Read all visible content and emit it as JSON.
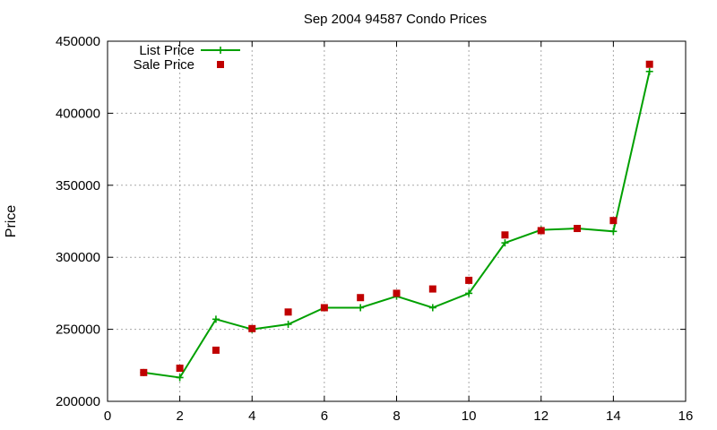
{
  "chart_data": {
    "type": "line",
    "title": "Sep 2004 94587 Condo Prices",
    "xlabel": "",
    "ylabel": "Price",
    "xlim": [
      0,
      16
    ],
    "ylim": [
      200000,
      450000
    ],
    "xticks": [
      0,
      2,
      4,
      6,
      8,
      10,
      12,
      14,
      16
    ],
    "yticks": [
      200000,
      250000,
      300000,
      350000,
      400000,
      450000
    ],
    "grid": true,
    "legend_position": "top-left",
    "series": [
      {
        "name": "List Price",
        "style": "line-with-plus-markers",
        "color": "#00a000",
        "x": [
          1,
          2,
          3,
          4,
          5,
          6,
          7,
          8,
          9,
          10,
          11,
          12,
          13,
          14,
          15
        ],
        "y": [
          220000,
          216500,
          257000,
          250000,
          253500,
          265000,
          265000,
          273000,
          265000,
          275000,
          310000,
          319000,
          320000,
          318000,
          429000
        ]
      },
      {
        "name": "Sale Price",
        "style": "square-markers",
        "color": "#c00000",
        "x": [
          1,
          2,
          3,
          4,
          5,
          6,
          7,
          8,
          9,
          10,
          11,
          12,
          13,
          14,
          15
        ],
        "y": [
          220000,
          223000,
          235500,
          250500,
          262000,
          265000,
          272000,
          275000,
          278000,
          284000,
          315500,
          318500,
          320000,
          325500,
          434000
        ]
      }
    ]
  }
}
